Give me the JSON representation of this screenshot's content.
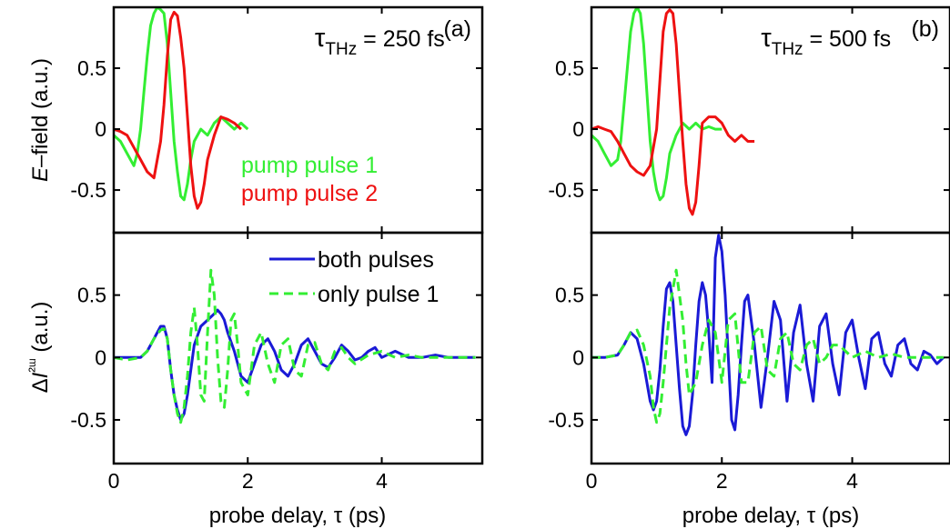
{
  "figure": {
    "ylabel_top": "E–field (a.u.)",
    "ylabel_bottom": "ΔI²ᵚ (a.u.)",
    "xlabel": "probe delay, τ (ps)"
  },
  "chart_data": [
    {
      "type": "line",
      "panel_label": "(a)",
      "annotation": "τTHz = 250 fs",
      "xlim": [
        0,
        5.5
      ],
      "ylim": [
        -0.85,
        1.0
      ],
      "xticks": [
        0,
        2,
        4
      ],
      "yticks": [
        -0.5,
        0,
        0.5
      ],
      "legend": {
        "placement": "center-right"
      },
      "series": [
        {
          "name": "pump pulse 1",
          "color": "#33ee33",
          "style": "solid",
          "x": [
            0,
            0.1,
            0.2,
            0.3,
            0.35,
            0.4,
            0.45,
            0.5,
            0.55,
            0.6,
            0.65,
            0.7,
            0.75,
            0.8,
            0.85,
            0.9,
            0.95,
            1.0,
            1.05,
            1.1,
            1.15,
            1.2,
            1.3,
            1.4,
            1.5,
            1.6,
            1.7,
            1.8,
            1.9,
            2.0
          ],
          "y": [
            -0.05,
            -0.1,
            -0.2,
            -0.3,
            -0.2,
            0.0,
            0.3,
            0.6,
            0.85,
            0.95,
            1.0,
            0.98,
            0.95,
            0.7,
            0.3,
            -0.1,
            -0.35,
            -0.55,
            -0.58,
            -0.45,
            -0.25,
            -0.1,
            0.0,
            -0.05,
            0.05,
            0.1,
            0.05,
            0.0,
            0.05,
            0.0
          ]
        },
        {
          "name": "pump pulse 2",
          "color": "#ee1111",
          "style": "solid",
          "x": [
            0,
            0.1,
            0.2,
            0.3,
            0.4,
            0.5,
            0.6,
            0.7,
            0.75,
            0.8,
            0.85,
            0.9,
            0.95,
            1.0,
            1.05,
            1.1,
            1.15,
            1.2,
            1.25,
            1.3,
            1.35,
            1.4,
            1.5,
            1.6,
            1.7,
            1.8,
            1.9
          ],
          "y": [
            0.0,
            -0.02,
            -0.05,
            -0.15,
            -0.25,
            -0.35,
            -0.4,
            -0.1,
            0.2,
            0.6,
            0.9,
            0.96,
            0.93,
            0.75,
            0.5,
            0.1,
            -0.3,
            -0.55,
            -0.65,
            -0.6,
            -0.45,
            -0.25,
            -0.05,
            0.1,
            0.08,
            0.05,
            0.0
          ]
        }
      ]
    },
    {
      "type": "line",
      "panel_label": "(b)",
      "annotation": "τTHz = 500 fs",
      "xlim": [
        0,
        5.5
      ],
      "ylim": [
        -0.85,
        1.0
      ],
      "xticks": [
        0,
        2,
        4
      ],
      "yticks": [
        -0.5,
        0,
        0.5
      ],
      "series": [
        {
          "name": "pump pulse 1",
          "color": "#33ee33",
          "style": "solid",
          "x": [
            0,
            0.1,
            0.2,
            0.3,
            0.4,
            0.45,
            0.5,
            0.55,
            0.6,
            0.65,
            0.7,
            0.75,
            0.8,
            0.85,
            0.9,
            0.95,
            1.0,
            1.05,
            1.1,
            1.15,
            1.2,
            1.3,
            1.4,
            1.5,
            1.6,
            1.7,
            1.8,
            1.9,
            2.0
          ],
          "y": [
            -0.05,
            -0.1,
            -0.2,
            -0.3,
            -0.25,
            -0.1,
            0.2,
            0.5,
            0.8,
            0.95,
            1.0,
            0.95,
            0.7,
            0.3,
            -0.1,
            -0.35,
            -0.5,
            -0.58,
            -0.55,
            -0.4,
            -0.2,
            -0.05,
            0.05,
            0.0,
            0.05,
            0.0,
            0.02,
            0.0,
            0.0
          ]
        },
        {
          "name": "pump pulse 2",
          "color": "#ee1111",
          "style": "solid",
          "x": [
            0,
            0.1,
            0.2,
            0.3,
            0.4,
            0.5,
            0.6,
            0.7,
            0.8,
            0.9,
            1.0,
            1.05,
            1.1,
            1.15,
            1.2,
            1.25,
            1.3,
            1.35,
            1.4,
            1.45,
            1.5,
            1.55,
            1.6,
            1.65,
            1.7,
            1.8,
            1.9,
            2.0,
            2.1,
            2.2,
            2.3,
            2.4,
            2.5
          ],
          "y": [
            0.0,
            0.02,
            0.0,
            -0.02,
            -0.1,
            -0.2,
            -0.3,
            -0.35,
            -0.38,
            -0.3,
            0.0,
            0.4,
            0.8,
            0.95,
            0.98,
            0.95,
            0.7,
            0.3,
            -0.1,
            -0.45,
            -0.65,
            -0.7,
            -0.6,
            -0.3,
            0.05,
            0.1,
            0.1,
            0.05,
            -0.05,
            -0.1,
            -0.05,
            -0.1,
            -0.1
          ]
        }
      ]
    },
    {
      "type": "line",
      "xlim": [
        0,
        5.5
      ],
      "ylim": [
        -0.85,
        1.0
      ],
      "xticks": [
        0,
        2,
        4
      ],
      "yticks": [
        -0.5,
        0,
        0.5
      ],
      "legend": {
        "placement": "top-right"
      },
      "series": [
        {
          "name": "both pulses",
          "color": "#1a1ad6",
          "style": "solid",
          "x": [
            0,
            0.2,
            0.4,
            0.5,
            0.6,
            0.7,
            0.75,
            0.8,
            0.85,
            0.9,
            0.95,
            1.0,
            1.05,
            1.1,
            1.15,
            1.2,
            1.3,
            1.4,
            1.5,
            1.55,
            1.6,
            1.65,
            1.7,
            1.8,
            1.9,
            2.0,
            2.1,
            2.2,
            2.3,
            2.4,
            2.5,
            2.6,
            2.7,
            2.8,
            2.9,
            3.0,
            3.1,
            3.2,
            3.3,
            3.4,
            3.5,
            3.6,
            3.7,
            3.8,
            3.9,
            4.0,
            4.2,
            4.4,
            4.6,
            4.8,
            5.0,
            5.2,
            5.4
          ],
          "y": [
            0.0,
            0.0,
            0.0,
            0.05,
            0.15,
            0.25,
            0.25,
            0.15,
            -0.1,
            -0.3,
            -0.42,
            -0.5,
            -0.45,
            -0.3,
            -0.1,
            0.1,
            0.25,
            0.3,
            0.35,
            0.38,
            0.35,
            0.3,
            0.2,
            0.05,
            -0.15,
            -0.2,
            -0.05,
            0.1,
            0.15,
            0.05,
            -0.1,
            -0.15,
            -0.05,
            0.1,
            0.15,
            0.05,
            -0.05,
            -0.08,
            0.0,
            0.1,
            0.05,
            -0.02,
            0.0,
            0.05,
            0.08,
            0.0,
            0.05,
            0.0,
            0.0,
            0.02,
            0.0,
            0.0,
            0.0
          ]
        },
        {
          "name": "only pulse 1",
          "color": "#33ee33",
          "style": "dashed",
          "x": [
            0,
            0.2,
            0.4,
            0.5,
            0.6,
            0.7,
            0.75,
            0.8,
            0.85,
            0.9,
            0.95,
            1.0,
            1.05,
            1.1,
            1.15,
            1.2,
            1.25,
            1.3,
            1.35,
            1.4,
            1.45,
            1.5,
            1.55,
            1.6,
            1.65,
            1.7,
            1.75,
            1.8,
            1.85,
            1.9,
            2.0,
            2.1,
            2.2,
            2.3,
            2.4,
            2.5,
            2.6,
            2.7,
            2.8,
            2.9,
            3.0,
            3.1,
            3.2,
            3.3,
            3.4,
            3.5,
            3.6,
            3.8,
            4.0,
            4.2,
            4.4,
            4.6,
            4.8,
            5.0,
            5.2,
            5.4
          ],
          "y": [
            0.0,
            -0.02,
            0.0,
            0.05,
            0.15,
            0.22,
            0.23,
            0.15,
            -0.1,
            -0.3,
            -0.45,
            -0.52,
            -0.4,
            -0.15,
            0.2,
            0.4,
            0.1,
            -0.3,
            -0.35,
            0.2,
            0.7,
            0.5,
            0.0,
            -0.35,
            -0.4,
            -0.1,
            0.3,
            0.35,
            0.1,
            -0.2,
            -0.3,
            0.1,
            0.2,
            -0.05,
            -0.2,
            0.1,
            0.15,
            -0.1,
            -0.15,
            0.1,
            0.12,
            -0.05,
            -0.1,
            0.05,
            0.08,
            0.0,
            -0.05,
            0.02,
            0.05,
            0.0,
            0.02,
            0.0,
            0.0,
            0.0,
            0.0,
            0.0
          ]
        }
      ]
    },
    {
      "type": "line",
      "xlim": [
        0,
        5.5
      ],
      "ylim": [
        -0.85,
        1.0
      ],
      "xticks": [
        0,
        2,
        4
      ],
      "yticks": [
        -0.5,
        0,
        0.5
      ],
      "series": [
        {
          "name": "both pulses",
          "color": "#1a1ad6",
          "style": "solid",
          "x": [
            0,
            0.2,
            0.4,
            0.5,
            0.6,
            0.7,
            0.8,
            0.9,
            0.95,
            1.0,
            1.05,
            1.1,
            1.15,
            1.2,
            1.25,
            1.3,
            1.35,
            1.4,
            1.45,
            1.5,
            1.55,
            1.6,
            1.65,
            1.7,
            1.75,
            1.8,
            1.85,
            1.9,
            1.95,
            2.0,
            2.05,
            2.1,
            2.15,
            2.2,
            2.25,
            2.3,
            2.35,
            2.4,
            2.5,
            2.6,
            2.7,
            2.8,
            2.9,
            3.0,
            3.1,
            3.2,
            3.3,
            3.4,
            3.5,
            3.6,
            3.7,
            3.8,
            3.9,
            4.0,
            4.1,
            4.2,
            4.3,
            4.4,
            4.5,
            4.6,
            4.7,
            4.8,
            4.9,
            5.0,
            5.1,
            5.2,
            5.3,
            5.4
          ],
          "y": [
            0.0,
            0.0,
            0.02,
            0.1,
            0.2,
            0.15,
            -0.05,
            -0.35,
            -0.42,
            -0.35,
            -0.1,
            0.25,
            0.55,
            0.6,
            0.45,
            0.1,
            -0.25,
            -0.55,
            -0.62,
            -0.55,
            -0.3,
            0.1,
            0.45,
            0.6,
            0.5,
            0.2,
            -0.2,
            0.8,
            0.98,
            0.85,
            0.5,
            0.0,
            -0.5,
            -0.58,
            -0.3,
            0.1,
            0.45,
            0.5,
            0.1,
            -0.4,
            0.0,
            0.45,
            0.3,
            -0.35,
            0.2,
            0.42,
            -0.05,
            -0.35,
            0.25,
            0.35,
            -0.05,
            -0.3,
            0.2,
            0.3,
            0.0,
            -0.25,
            0.15,
            0.2,
            -0.05,
            -0.15,
            0.1,
            0.15,
            -0.05,
            -0.1,
            0.05,
            0.02,
            -0.05,
            0.0
          ]
        },
        {
          "name": "only pulse 1",
          "color": "#33ee33",
          "style": "dashed",
          "x": [
            0,
            0.2,
            0.4,
            0.5,
            0.6,
            0.7,
            0.8,
            0.9,
            0.95,
            1.0,
            1.05,
            1.1,
            1.15,
            1.2,
            1.3,
            1.4,
            1.45,
            1.5,
            1.6,
            1.7,
            1.8,
            1.9,
            2.0,
            2.1,
            2.2,
            2.3,
            2.4,
            2.5,
            2.6,
            2.7,
            2.8,
            2.9,
            3.0,
            3.1,
            3.2,
            3.3,
            3.4,
            3.5,
            3.6,
            3.7,
            3.8,
            4.0,
            4.2,
            4.4,
            4.6,
            4.8,
            5.0,
            5.2,
            5.4
          ],
          "y": [
            0.0,
            0.0,
            0.02,
            0.1,
            0.2,
            0.22,
            0.1,
            -0.15,
            -0.4,
            -0.52,
            -0.45,
            -0.2,
            0.1,
            0.4,
            0.7,
            0.3,
            -0.05,
            -0.3,
            -0.2,
            0.1,
            0.3,
            0.2,
            -0.2,
            0.3,
            0.35,
            -0.2,
            -0.2,
            0.2,
            0.25,
            -0.1,
            -0.15,
            0.15,
            0.2,
            -0.05,
            -0.1,
            0.1,
            0.15,
            -0.05,
            0.0,
            0.1,
            0.1,
            0.0,
            0.05,
            0.0,
            0.03,
            0.0,
            0.0,
            0.0,
            0.0
          ]
        }
      ]
    }
  ]
}
